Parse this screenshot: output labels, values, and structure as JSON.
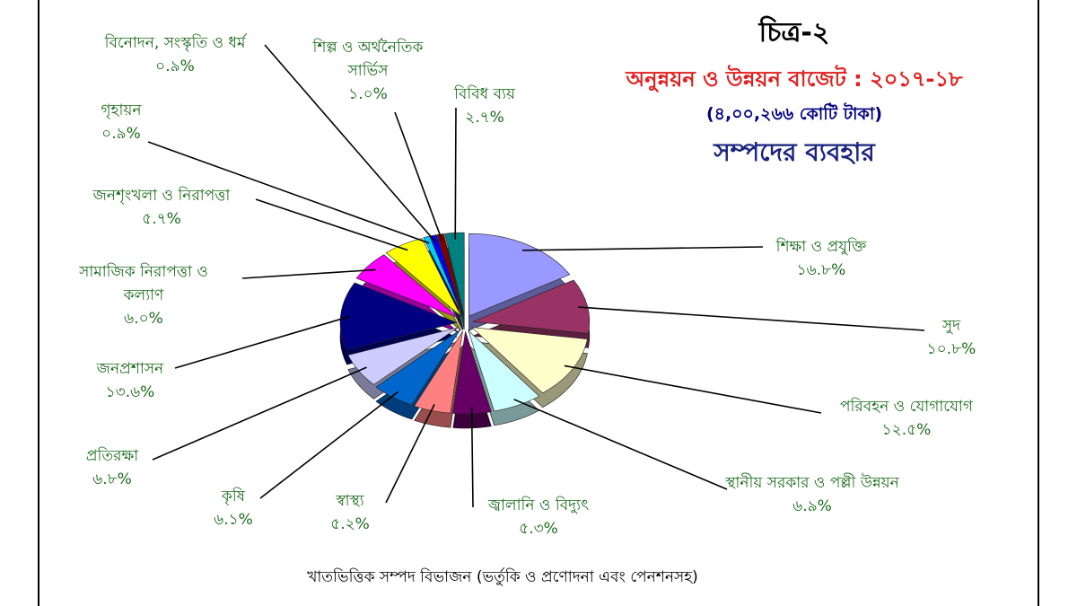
{
  "chart_data": {
    "type": "pie",
    "title": "চিত্র-২",
    "subtitle": "অনুন্নয়ন ও উন্নয়ন বাজেট : ২০১৭-১৮",
    "total_label": "(৪,০০,২৬৬ কোটি টাকা)",
    "heading": "সম্পদের ব্যবহার",
    "caption": "খাতভিত্তিক সম্পদ বিভাজন (ভর্তুকি ও প্রণোদনা এবং পেনশনসহ)",
    "categories": [
      "শিক্ষা ও প্রযুক্তি",
      "সুদ",
      "পরিবহন ও যোগাযোগ",
      "স্থানীয় সরকার ও পল্লী উন্নয়ন",
      "জ্বালানি ও বিদ্যুৎ",
      "স্বাস্থ্য",
      "কৃষি",
      "প্রতিরক্ষা",
      "জনপ্রশাসন",
      "সামাজিক নিরাপত্তা ও কল্যাণ",
      "জনশৃংখলা ও নিরাপত্তা",
      "গৃহায়ন",
      "বিনোদন, সংস্কৃতি ও ধর্ম",
      "শিল্প ও অর্থনৈতিক সার্ভিস",
      "বিবিধ ব্যয়"
    ],
    "values": [
      16.8,
      10.8,
      12.5,
      6.9,
      5.3,
      5.2,
      6.1,
      6.8,
      13.6,
      6.0,
      5.7,
      0.9,
      0.9,
      1.0,
      2.7
    ],
    "value_labels": [
      "১৬.৮%",
      "১০.৮%",
      "১২.৫%",
      "৬.৯%",
      "৫.৩%",
      "৫.২%",
      "৬.১%",
      "৬.৮%",
      "১৩.৬%",
      "৬.০%",
      "৫.৭%",
      "০.৯%",
      "০.৯%",
      "১.০%",
      "২.৭%"
    ],
    "colors": [
      "#9999ff",
      "#993366",
      "#ffffcc",
      "#ccffff",
      "#660066",
      "#ff8080",
      "#0066cc",
      "#ccccff",
      "#000080",
      "#ff00ff",
      "#ffff00",
      "#00ccff",
      "#0000ff",
      "#800000",
      "#008080"
    ]
  }
}
